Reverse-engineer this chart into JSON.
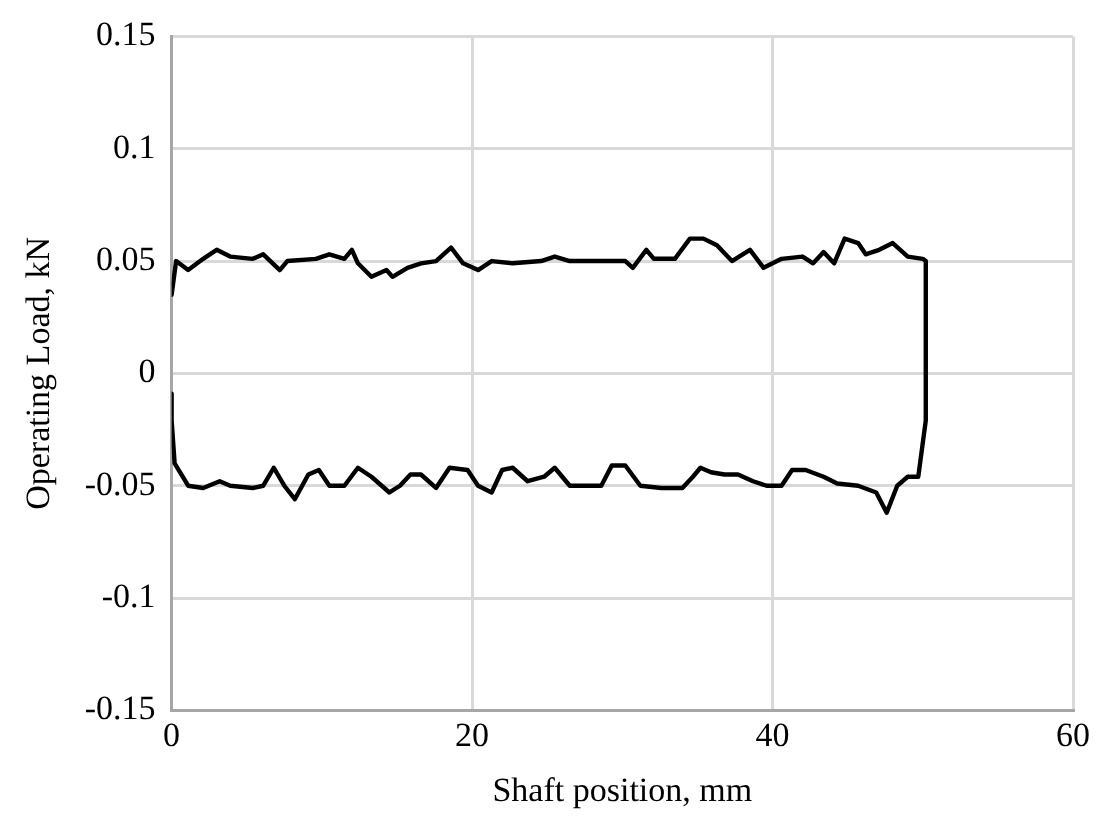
{
  "chart_data": {
    "type": "line",
    "xlabel": "Shaft position, mm",
    "ylabel": "Operating Load, kN",
    "xlim": [
      0,
      60
    ],
    "xticks": [
      0,
      20,
      40,
      60
    ],
    "ylim": [
      -0.15,
      0.15
    ],
    "yticks": [
      -0.15,
      -0.1,
      -0.05,
      0,
      0.05,
      0.1,
      0.15
    ],
    "grid": true,
    "legend": false,
    "marker": "none",
    "line_style": "solid",
    "series": [
      {
        "color": "#000000",
        "x": [
          0,
          0.3,
          1.1,
          2.1,
          3.0,
          3.9,
          5.4,
          6.1,
          7.2,
          7.7,
          9.6,
          10.5,
          11.5,
          12.0,
          12.4,
          13.3,
          14.3,
          14.7,
          15.7,
          16.6,
          17.6,
          18.6,
          19.4,
          20.4,
          21.3,
          22.7,
          24.6,
          25.5,
          26.5,
          28.4,
          30.2,
          30.7,
          31.6,
          32.1,
          33.5,
          34.5,
          35.4,
          36.3,
          37.3,
          38.5,
          39.4,
          40.6,
          42.0,
          42.7,
          43.4,
          44.1,
          44.8,
          45.7,
          46.2,
          47.1,
          48.0,
          49.0,
          50.0,
          50.2,
          50.2,
          49.7,
          49.0,
          48.3,
          47.6,
          46.9,
          45.7,
          44.3,
          43.4,
          42.2,
          41.3,
          40.6,
          39.6,
          38.7,
          37.7,
          36.8,
          35.9,
          35.2,
          34.7,
          34.0,
          32.6,
          31.2,
          30.2,
          29.3,
          28.6,
          26.5,
          25.5,
          24.8,
          23.7,
          22.7,
          22.0,
          21.3,
          20.4,
          19.7,
          18.5,
          17.6,
          16.6,
          15.9,
          15.2,
          14.5,
          13.3,
          12.4,
          11.5,
          10.5,
          9.8,
          9.1,
          8.2,
          7.5,
          6.8,
          6.1,
          5.4,
          3.9,
          3.2,
          2.1,
          1.1,
          0.2,
          0,
          0
        ],
        "values": [
          0.035,
          0.05,
          0.046,
          0.051,
          0.055,
          0.052,
          0.051,
          0.053,
          0.046,
          0.05,
          0.051,
          0.053,
          0.051,
          0.055,
          0.049,
          0.043,
          0.046,
          0.043,
          0.047,
          0.049,
          0.05,
          0.056,
          0.049,
          0.046,
          0.05,
          0.049,
          0.05,
          0.052,
          0.05,
          0.05,
          0.05,
          0.047,
          0.055,
          0.051,
          0.051,
          0.06,
          0.06,
          0.057,
          0.05,
          0.055,
          0.047,
          0.051,
          0.052,
          0.049,
          0.054,
          0.049,
          0.06,
          0.058,
          0.053,
          0.055,
          0.058,
          0.052,
          0.051,
          0.05,
          -0.021,
          -0.046,
          -0.046,
          -0.05,
          -0.062,
          -0.053,
          -0.05,
          -0.049,
          -0.046,
          -0.043,
          -0.043,
          -0.05,
          -0.05,
          -0.048,
          -0.045,
          -0.045,
          -0.044,
          -0.042,
          -0.046,
          -0.051,
          -0.051,
          -0.05,
          -0.041,
          -0.041,
          -0.05,
          -0.05,
          -0.042,
          -0.046,
          -0.048,
          -0.042,
          -0.043,
          -0.053,
          -0.05,
          -0.043,
          -0.042,
          -0.051,
          -0.045,
          -0.045,
          -0.05,
          -0.053,
          -0.046,
          -0.042,
          -0.05,
          -0.05,
          -0.043,
          -0.045,
          -0.056,
          -0.05,
          -0.042,
          -0.05,
          -0.051,
          -0.05,
          -0.048,
          -0.051,
          -0.05,
          -0.04,
          -0.021,
          -0.009
        ]
      }
    ]
  }
}
